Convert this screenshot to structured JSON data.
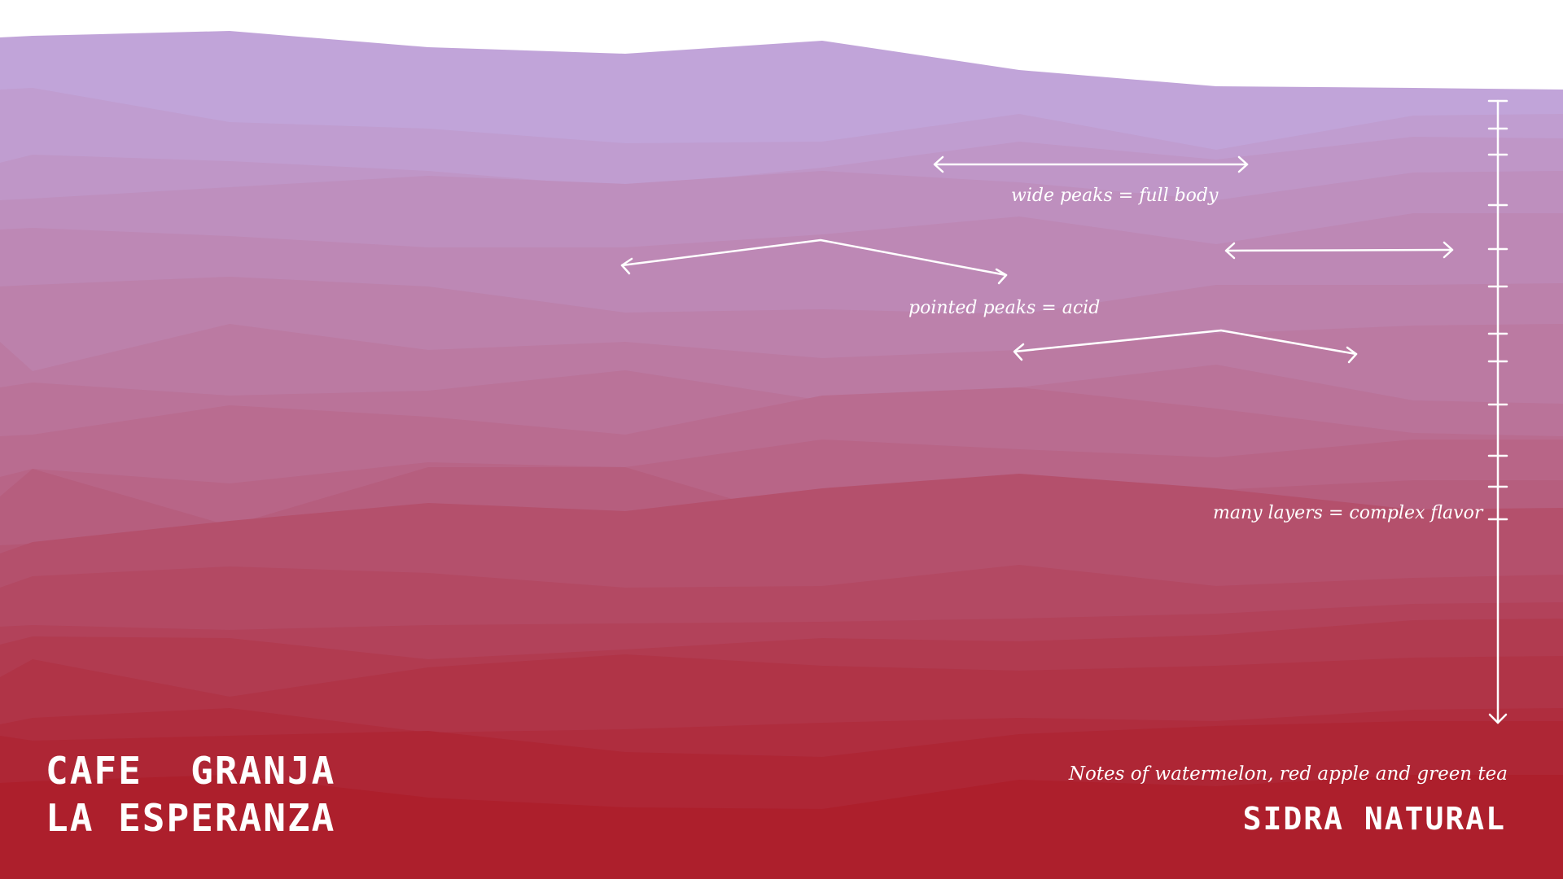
{
  "farm": {
    "line1": "CAFE  GRANJA",
    "line2": "LA ESPERANZA"
  },
  "coffee": {
    "notes": "Notes of watermelon, red apple and green tea",
    "variety": "SIDRA NATURAL"
  },
  "annotations": {
    "wide_peaks": "wide peaks = full body",
    "pointed_peaks": "pointed peaks = acid",
    "many_layers": "many layers = complex flavor"
  },
  "colors": {
    "background": "#ffffff",
    "top_layer": "#c1a4d9",
    "bottom_layer": "#ad1f2c",
    "annotation": "#ffffff"
  },
  "icons": {
    "double_arrow": "double-headed-arrow",
    "scale": "vertical-scale-arrow"
  }
}
